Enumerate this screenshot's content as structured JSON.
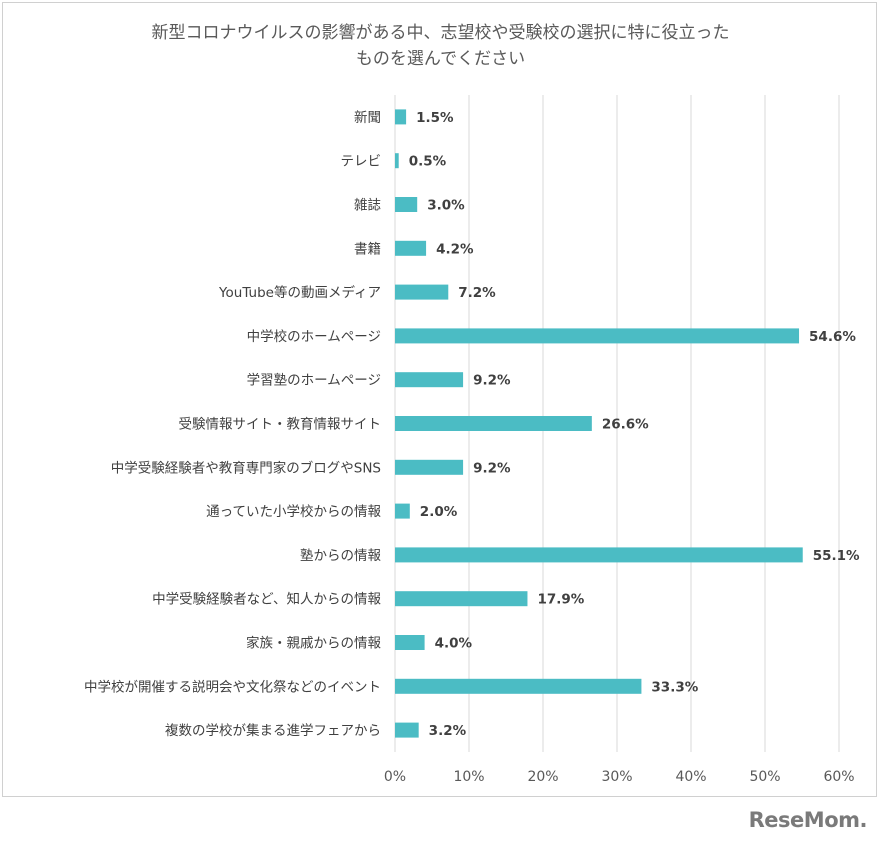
{
  "chart_data": {
    "type": "bar",
    "orientation": "horizontal",
    "title_line1": "新型コロナウイルスの影響がある中、志望校や受験校の選択に特に役立った",
    "title_line2": "ものを選んでください",
    "categories": [
      "新聞",
      "テレビ",
      "雑誌",
      "書籍",
      "YouTube等の動画メディア",
      "中学校のホームページ",
      "学習塾のホームページ",
      "受験情報サイト・教育情報サイト",
      "中学受験経験者や教育専門家のブログやSNS",
      "通っていた小学校からの情報",
      "塾からの情報",
      "中学受験経験者など、知人からの情報",
      "家族・親戚からの情報",
      "中学校が開催する説明会や文化祭などのイベント",
      "複数の学校が集まる進学フェアから"
    ],
    "values": [
      1.5,
      0.5,
      3.0,
      4.2,
      7.2,
      54.6,
      9.2,
      26.6,
      9.2,
      2.0,
      55.1,
      17.9,
      4.0,
      33.3,
      3.2
    ],
    "value_labels": [
      "1.5%",
      "0.5%",
      "3.0%",
      "4.2%",
      "7.2%",
      "54.6%",
      "9.2%",
      "26.6%",
      "9.2%",
      "2.0%",
      "55.1%",
      "17.9%",
      "4.0%",
      "33.3%",
      "3.2%"
    ],
    "xlim": [
      0,
      60
    ],
    "x_ticks": [
      0,
      10,
      20,
      30,
      40,
      50,
      60
    ],
    "x_tick_labels": [
      "0%",
      "10%",
      "20%",
      "30%",
      "40%",
      "50%",
      "60%"
    ],
    "grid": "vertical",
    "bar_color": "#4bbcc4",
    "grid_color": "#d9d9d9"
  },
  "logo": {
    "text_main": "ReseMom",
    "text_dot": "."
  }
}
